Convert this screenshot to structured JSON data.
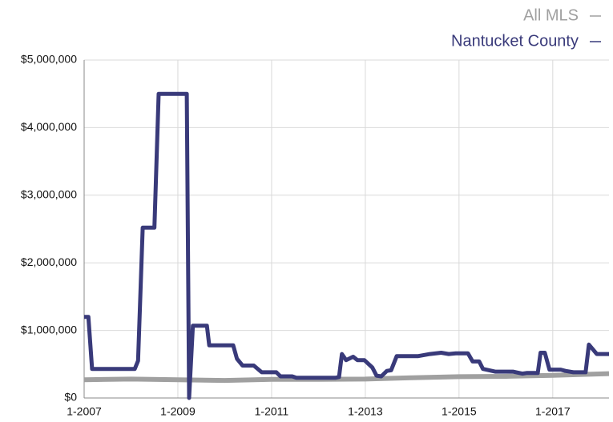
{
  "chart_data": {
    "type": "line",
    "legend": "top-right",
    "grid": true,
    "xlim": [
      2007,
      2018.2
    ],
    "xticks": [
      {
        "value": 2007,
        "label": "1-2007"
      },
      {
        "value": 2009,
        "label": "1-2009"
      },
      {
        "value": 2011,
        "label": "1-2011"
      },
      {
        "value": 2013,
        "label": "1-2013"
      },
      {
        "value": 2015,
        "label": "1-2015"
      },
      {
        "value": 2017,
        "label": "1-2017"
      }
    ],
    "ylim": [
      0,
      5000000
    ],
    "yticks": [
      {
        "value": 0,
        "label": "$0"
      },
      {
        "value": 1000000,
        "label": "$1,000,000"
      },
      {
        "value": 2000000,
        "label": "$2,000,000"
      },
      {
        "value": 3000000,
        "label": "$3,000,000"
      },
      {
        "value": 4000000,
        "label": "$4,000,000"
      },
      {
        "value": 5000000,
        "label": "$5,000,000"
      }
    ],
    "series": [
      {
        "name": "All MLS",
        "color": "#a0a0a0",
        "x": [
          2007,
          2008,
          2009,
          2010,
          2011,
          2012,
          2013,
          2014,
          2015,
          2016,
          2017,
          2018.2
        ],
        "values": [
          270000,
          280000,
          270000,
          260000,
          275000,
          275000,
          280000,
          300000,
          315000,
          320000,
          335000,
          360000
        ]
      },
      {
        "name": "Nantucket County",
        "color": "#393a7a",
        "x": [
          2007,
          2007.09,
          2007.17,
          2008.08,
          2008.15,
          2008.25,
          2008.5,
          2008.59,
          2009.19,
          2009.24,
          2009.32,
          2009.62,
          2009.67,
          2010.18,
          2010.26,
          2010.38,
          2010.62,
          2010.79,
          2011.1,
          2011.19,
          2011.44,
          2011.53,
          2012.37,
          2012.44,
          2012.5,
          2012.59,
          2012.74,
          2012.83,
          2012.98,
          2013.15,
          2013.24,
          2013.34,
          2013.46,
          2013.55,
          2013.67,
          2014.13,
          2014.38,
          2014.62,
          2014.78,
          2014.93,
          2015.19,
          2015.29,
          2015.43,
          2015.51,
          2015.77,
          2016.15,
          2016.35,
          2016.44,
          2016.68,
          2016.74,
          2016.83,
          2016.93,
          2017.17,
          2017.27,
          2017.44,
          2017.7,
          2017.77,
          2017.94,
          2018.2
        ],
        "values": [
          1200000,
          1200000,
          430000,
          430000,
          550000,
          2520000,
          2520000,
          4500000,
          4500000,
          0,
          1070000,
          1070000,
          780000,
          780000,
          580000,
          480000,
          480000,
          380000,
          380000,
          320000,
          320000,
          300000,
          300000,
          310000,
          650000,
          560000,
          610000,
          560000,
          560000,
          450000,
          330000,
          320000,
          400000,
          410000,
          620000,
          620000,
          650000,
          670000,
          650000,
          660000,
          660000,
          540000,
          540000,
          430000,
          390000,
          390000,
          360000,
          370000,
          370000,
          670000,
          670000,
          420000,
          420000,
          400000,
          380000,
          380000,
          790000,
          650000,
          650000
        ]
      }
    ]
  }
}
